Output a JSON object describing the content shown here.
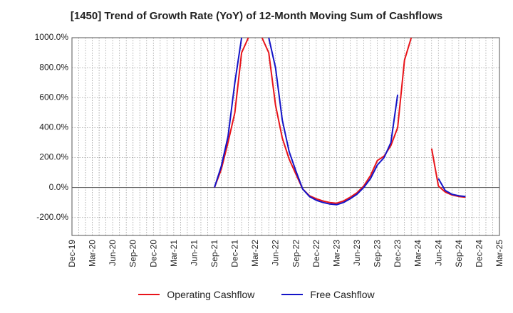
{
  "chart_data": {
    "type": "line",
    "title": "[1450]  Trend of Growth Rate (YoY) of 12-Month Moving Sum of Cashflows",
    "xlabel": "",
    "ylabel": "",
    "ylim": [
      -320,
      1000
    ],
    "yticks": [
      1000,
      800,
      600,
      400,
      200,
      0,
      -200
    ],
    "ytick_labels": [
      "1000.0%",
      "800.0%",
      "600.0%",
      "400.0%",
      "200.0%",
      "0.0%",
      "-200.0%"
    ],
    "xlim": [
      "2019-12",
      "2025-03"
    ],
    "x_tick_labels": [
      "Dec-19",
      "Mar-20",
      "Jun-20",
      "Sep-20",
      "Dec-20",
      "Mar-21",
      "Jun-21",
      "Sep-21",
      "Dec-21",
      "Mar-22",
      "Jun-22",
      "Sep-22",
      "Dec-22",
      "Mar-23",
      "Jun-23",
      "Sep-23",
      "Dec-23",
      "Mar-24",
      "Jun-24",
      "Sep-24",
      "Dec-24",
      "Mar-25"
    ],
    "grid": true,
    "legend_position": "bottom",
    "series": [
      {
        "name": "Operating Cashflow",
        "color": "#e8141a",
        "points": [
          {
            "x": "2021-09",
            "y": 0
          },
          {
            "x": "2021-10",
            "y": 120
          },
          {
            "x": "2021-11",
            "y": 300
          },
          {
            "x": "2021-12",
            "y": 500
          },
          {
            "x": "2022-01",
            "y": 900
          },
          {
            "x": "2022-02",
            "y": 1000
          },
          {
            "x": null,
            "y": null
          },
          {
            "x": "2022-04",
            "y": 1000
          },
          {
            "x": "2022-05",
            "y": 900
          },
          {
            "x": "2022-06",
            "y": 550
          },
          {
            "x": "2022-07",
            "y": 330
          },
          {
            "x": "2022-08",
            "y": 190
          },
          {
            "x": "2022-09",
            "y": 90
          },
          {
            "x": "2022-10",
            "y": -10
          },
          {
            "x": "2022-11",
            "y": -55
          },
          {
            "x": "2022-12",
            "y": -75
          },
          {
            "x": "2023-01",
            "y": -90
          },
          {
            "x": "2023-02",
            "y": -100
          },
          {
            "x": "2023-03",
            "y": -105
          },
          {
            "x": "2023-04",
            "y": -90
          },
          {
            "x": "2023-05",
            "y": -65
          },
          {
            "x": "2023-06",
            "y": -35
          },
          {
            "x": "2023-07",
            "y": 10
          },
          {
            "x": "2023-08",
            "y": 80
          },
          {
            "x": "2023-09",
            "y": 180
          },
          {
            "x": "2023-10",
            "y": 210
          },
          {
            "x": "2023-11",
            "y": 280
          },
          {
            "x": "2023-12",
            "y": 400
          },
          {
            "x": "2024-01",
            "y": 850
          },
          {
            "x": "2024-02",
            "y": 1000
          },
          {
            "x": null,
            "y": null
          },
          {
            "x": "2024-05",
            "y": 260
          },
          {
            "x": "2024-06",
            "y": 10
          },
          {
            "x": "2024-07",
            "y": -30
          },
          {
            "x": "2024-08",
            "y": -50
          },
          {
            "x": "2024-09",
            "y": -60
          },
          {
            "x": "2024-10",
            "y": -65
          }
        ]
      },
      {
        "name": "Free Cashflow",
        "color": "#1414c8",
        "points": [
          {
            "x": "2021-09",
            "y": 0
          },
          {
            "x": "2021-10",
            "y": 140
          },
          {
            "x": "2021-11",
            "y": 340
          },
          {
            "x": "2021-12",
            "y": 700
          },
          {
            "x": "2022-01",
            "y": 1000
          },
          {
            "x": null,
            "y": null
          },
          {
            "x": "2022-05",
            "y": 1000
          },
          {
            "x": "2022-06",
            "y": 800
          },
          {
            "x": "2022-07",
            "y": 450
          },
          {
            "x": "2022-08",
            "y": 240
          },
          {
            "x": "2022-09",
            "y": 110
          },
          {
            "x": "2022-10",
            "y": -10
          },
          {
            "x": "2022-11",
            "y": -60
          },
          {
            "x": "2022-12",
            "y": -85
          },
          {
            "x": "2023-01",
            "y": -100
          },
          {
            "x": "2023-02",
            "y": -110
          },
          {
            "x": "2023-03",
            "y": -115
          },
          {
            "x": "2023-04",
            "y": -100
          },
          {
            "x": "2023-05",
            "y": -75
          },
          {
            "x": "2023-06",
            "y": -45
          },
          {
            "x": "2023-07",
            "y": 0
          },
          {
            "x": "2023-08",
            "y": 60
          },
          {
            "x": "2023-09",
            "y": 150
          },
          {
            "x": "2023-10",
            "y": 200
          },
          {
            "x": "2023-11",
            "y": 300
          },
          {
            "x": "2023-12",
            "y": 620
          },
          {
            "x": null,
            "y": null
          },
          {
            "x": "2024-06",
            "y": 60
          },
          {
            "x": "2024-07",
            "y": -20
          },
          {
            "x": "2024-08",
            "y": -45
          },
          {
            "x": "2024-09",
            "y": -55
          },
          {
            "x": "2024-10",
            "y": -60
          }
        ]
      }
    ]
  }
}
